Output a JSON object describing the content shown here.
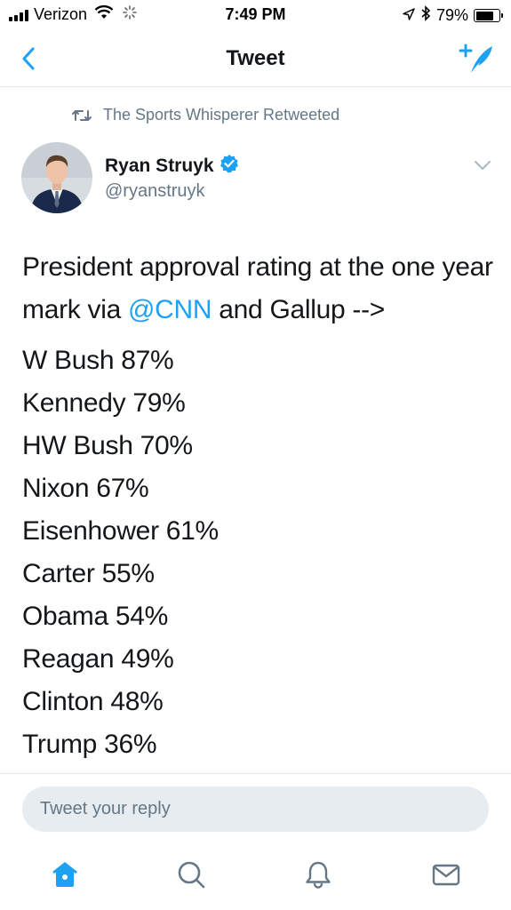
{
  "status_bar": {
    "carrier": "Verizon",
    "time": "7:49 PM",
    "battery_text": "79%",
    "battery_level": 0.79,
    "icons": [
      "signal-icon",
      "wifi-icon",
      "activity-icon",
      "location-arrow-icon",
      "bluetooth-icon",
      "battery-icon"
    ]
  },
  "nav": {
    "title": "Tweet",
    "back_icon": "chevron-left-icon",
    "compose_icon": "compose-tweet-icon"
  },
  "retweet_context": {
    "icon": "retweet-icon",
    "text": "The Sports Whisperer Retweeted"
  },
  "tweet": {
    "author_name": "Ryan Struyk",
    "author_handle": "@ryanstruyk",
    "verified": true,
    "text_part1": "President approval rating at the one year mark via ",
    "mention": "@CNN",
    "text_part2": " and Gallup -->",
    "lines": [
      "W Bush 87%",
      "Kennedy 79%",
      "HW Bush 70%",
      "Nixon 67%",
      "Eisenhower 61%",
      "Carter 55%",
      "Obama 54%",
      "Reagan 49%",
      "Clinton 48%",
      "Trump 36%"
    ]
  },
  "reply": {
    "placeholder": "Tweet your reply"
  },
  "tab_bar": {
    "tabs": [
      "home-icon",
      "search-icon",
      "notifications-icon",
      "messages-icon"
    ],
    "active_tab": "home",
    "accent": "#1da1f2"
  },
  "colors": {
    "accent": "#1da1f2",
    "text": "#14171a",
    "secondary": "#657786"
  }
}
